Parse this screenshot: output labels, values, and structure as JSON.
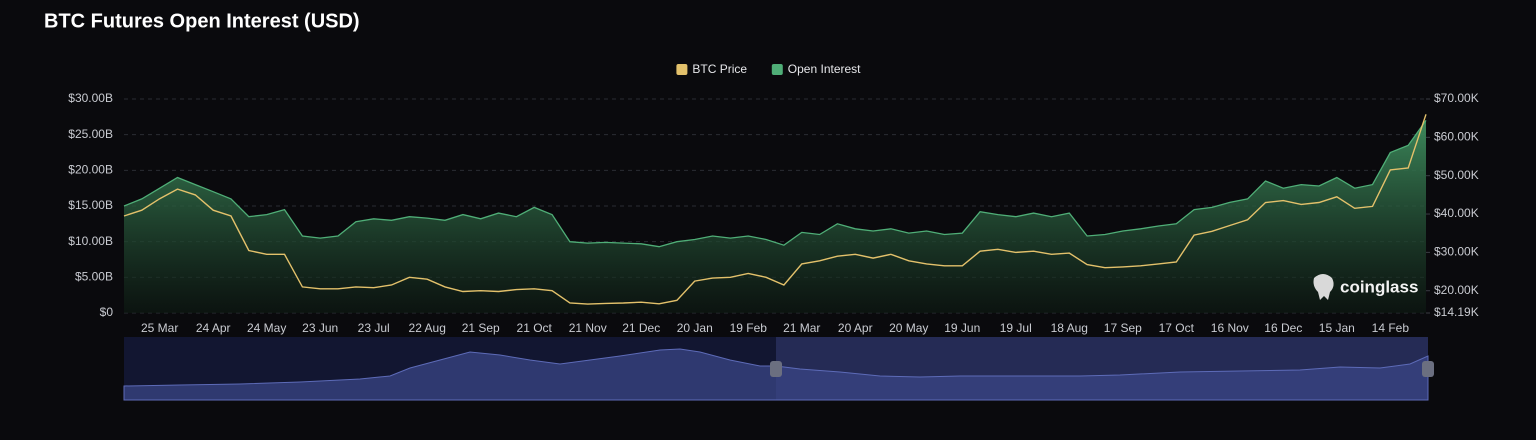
{
  "chart_data": {
    "type": "combo",
    "title": "BTC Futures Open Interest (USD)",
    "watermark": "coinglass",
    "legend": "top",
    "grid": true,
    "categories": [
      null,
      null,
      "25 Mar",
      null,
      null,
      "24 Apr",
      null,
      null,
      "24 May",
      null,
      null,
      "23 Jun",
      null,
      null,
      "23 Jul",
      null,
      null,
      "22 Aug",
      null,
      null,
      "21 Sep",
      null,
      null,
      "21 Oct",
      null,
      null,
      "21 Nov",
      null,
      null,
      "21 Dec",
      null,
      null,
      "20 Jan",
      null,
      null,
      "19 Feb",
      null,
      null,
      "21 Mar",
      null,
      null,
      "20 Apr",
      null,
      null,
      "20 May",
      null,
      null,
      "19 Jun",
      null,
      null,
      "19 Jul",
      null,
      null,
      "18 Aug",
      null,
      null,
      "17 Sep",
      null,
      null,
      "17 Oct",
      null,
      null,
      "16 Nov",
      null,
      null,
      "16 Dec",
      null,
      null,
      "15 Jan",
      null,
      null,
      "14 Feb",
      null,
      null
    ],
    "ylim": [
      0,
      30
    ],
    "yticks": [
      {
        "value": 0,
        "label": "$0"
      },
      {
        "value": 5,
        "label": "$5.00B"
      },
      {
        "value": 10,
        "label": "$10.00B"
      },
      {
        "value": 15,
        "label": "$15.00B"
      },
      {
        "value": 20,
        "label": "$20.00B"
      },
      {
        "value": 25,
        "label": "$25.00B"
      },
      {
        "value": 30,
        "label": "$30.00B"
      }
    ],
    "y2lim": [
      14.19,
      70
    ],
    "y2ticks": [
      {
        "value": 14.19,
        "label": "$14.19K"
      },
      {
        "value": 20,
        "label": "$20.00K"
      },
      {
        "value": 30,
        "label": "$30.00K"
      },
      {
        "value": 40,
        "label": "$40.00K"
      },
      {
        "value": 50,
        "label": "$50.00K"
      },
      {
        "value": 60,
        "label": "$60.00K"
      },
      {
        "value": 70,
        "label": "$70.00K"
      }
    ],
    "series": [
      {
        "name": "BTC Price",
        "type": "line",
        "axis": "y2",
        "color": "#e3c16b",
        "values": [
          39.5,
          41,
          44,
          46.5,
          45,
          41,
          39.5,
          30.5,
          29.5,
          29.5,
          21,
          20.5,
          20.5,
          21,
          20.8,
          21.5,
          23.5,
          23,
          21,
          19.8,
          20,
          19.8,
          20.3,
          20.5,
          20,
          16.8,
          16.5,
          16.7,
          16.8,
          17,
          16.6,
          17.5,
          22.5,
          23.3,
          23.5,
          24.5,
          23.5,
          21.5,
          27,
          27.8,
          29,
          29.5,
          28.5,
          29.5,
          27.8,
          27,
          26.5,
          26.5,
          30.3,
          30.8,
          30,
          30.3,
          29.5,
          29.8,
          26.8,
          26,
          26.2,
          26.5,
          27,
          27.5,
          34.5,
          35.5,
          37,
          38.5,
          43,
          43.5,
          42.5,
          43,
          44.5,
          41.5,
          42,
          51.5,
          52,
          66
        ]
      },
      {
        "name": "Open Interest",
        "type": "area",
        "color": "#4fae77",
        "values": [
          15,
          16,
          17.5,
          19,
          18,
          17,
          16,
          13.5,
          13.8,
          14.5,
          10.8,
          10.5,
          10.8,
          12.8,
          13.2,
          13,
          13.5,
          13.3,
          13,
          13.8,
          13.2,
          14,
          13.5,
          14.8,
          13.8,
          10,
          9.8,
          9.9,
          9.8,
          9.7,
          9.3,
          10,
          10.3,
          10.8,
          10.5,
          10.8,
          10.3,
          9.5,
          11.3,
          11,
          12.5,
          11.8,
          11.5,
          11.8,
          11.2,
          11.5,
          11,
          11.2,
          14.2,
          13.8,
          13.5,
          14,
          13.5,
          14,
          10.8,
          11,
          11.5,
          11.8,
          12.2,
          12.5,
          14.5,
          14.8,
          15.5,
          16,
          18.5,
          17.5,
          18,
          17.8,
          19,
          17.5,
          18,
          22.5,
          23.5,
          27
        ]
      }
    ]
  }
}
